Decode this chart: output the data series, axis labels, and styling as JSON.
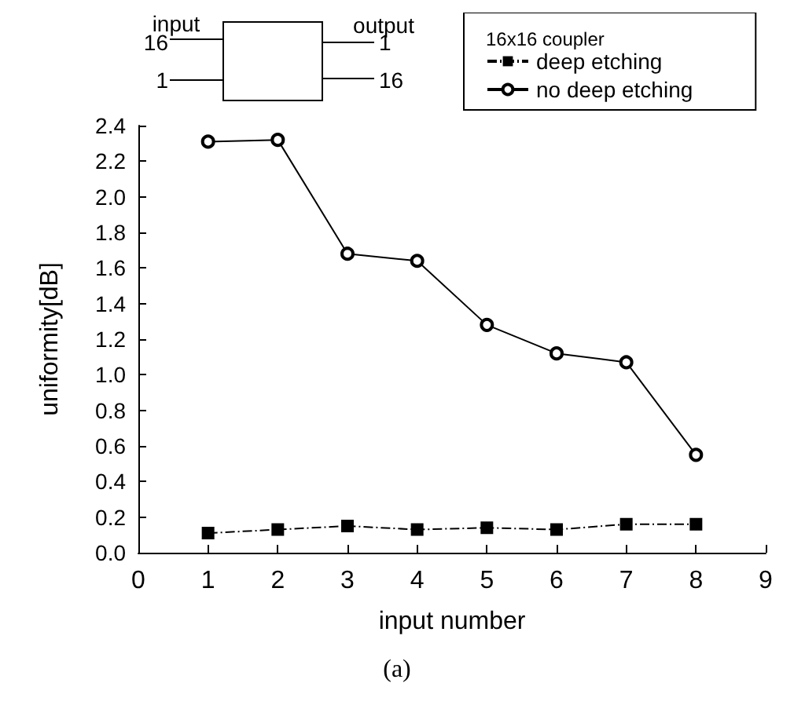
{
  "chart_data": {
    "type": "line",
    "xlabel": "input number",
    "ylabel": "uniformity[dB]",
    "legend_title": "16x16 coupler",
    "legend": "top right",
    "x": [
      1,
      2,
      3,
      4,
      5,
      6,
      7,
      8
    ],
    "series": [
      {
        "name": "deep etching",
        "color": "#000000",
        "marker": "square",
        "line_style": "dashed",
        "values": [
          0.11,
          0.13,
          0.15,
          0.13,
          0.14,
          0.13,
          0.16,
          0.16
        ]
      },
      {
        "name": "no deep etching",
        "color": "#000000",
        "marker": "circle",
        "line_style": "solid",
        "values": [
          2.31,
          2.32,
          1.68,
          1.64,
          1.28,
          1.12,
          1.07,
          0.55
        ]
      }
    ],
    "xlim": [
      0,
      9
    ],
    "xticks": [
      0,
      1,
      2,
      3,
      4,
      5,
      6,
      7,
      8,
      9
    ],
    "ylim": [
      0,
      2.4
    ],
    "yticks": [
      {
        "value": 0,
        "label": "0.0"
      },
      {
        "value": 0.2,
        "label": "0.2"
      },
      {
        "value": 0.4,
        "label": "0.4"
      },
      {
        "value": 0.6,
        "label": "0.6"
      },
      {
        "value": 0.8,
        "label": "0.8"
      },
      {
        "value": 1,
        "label": "1.0"
      },
      {
        "value": 1.2,
        "label": "1.2"
      },
      {
        "value": 1.4,
        "label": "1.4"
      },
      {
        "value": 1.6,
        "label": "1.6"
      },
      {
        "value": 1.8,
        "label": "1.8"
      },
      {
        "value": 2,
        "label": "2.0"
      },
      {
        "value": 2.2,
        "label": "2.2"
      },
      {
        "value": 2.4,
        "label": "2.4"
      }
    ],
    "annotations": [
      "input",
      "16",
      "1",
      "output",
      "1",
      "16",
      "(a)"
    ]
  }
}
